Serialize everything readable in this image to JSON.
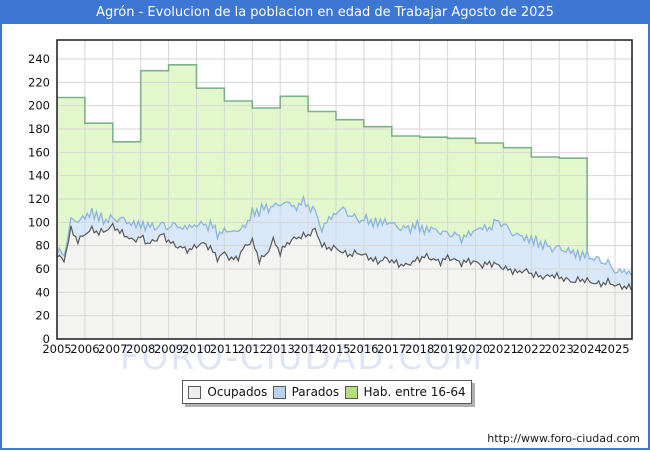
{
  "header": {
    "title": "Agrón - Evolucion de la poblacion en edad de Trabajar Agosto de 2025"
  },
  "footer": {
    "watermark": "FORO-CIUDAD.COM",
    "url": "http://www.foro-ciudad.com"
  },
  "colors": {
    "titlebar": "#3d76d3",
    "frame_border": "#3d76d3",
    "grid": "#d6d6d6",
    "plot_border": "#1a1a1a",
    "ocupados_fill": "#f3f3f1",
    "ocupados_line": "#58595b",
    "parados_fill": "#d8e8f8",
    "parados_line": "#8cb4e0",
    "hab_fill": "#e3f7cc",
    "hab_line": "#7fb08d",
    "watermark": "#e0e5f4",
    "tick_text": "#111111"
  },
  "chart_data": {
    "type": "area",
    "title": "Agrón - Evolucion de la poblacion en edad de Trabajar Agosto de 2025",
    "xlabel": "",
    "ylabel": "",
    "grid": true,
    "legend_position": "bottom",
    "xlim": [
      2005,
      2025.61
    ],
    "ylim": [
      0,
      256.3
    ],
    "x_ticks": [
      2005,
      2006,
      2007,
      2008,
      2009,
      2010,
      2011,
      2012,
      2013,
      2014,
      2015,
      2016,
      2017,
      2018,
      2019,
      2020,
      2021,
      2022,
      2023,
      2024,
      2025
    ],
    "y_ticks": [
      0,
      20,
      40,
      60,
      80,
      100,
      120,
      140,
      160,
      180,
      200,
      220,
      240
    ],
    "legend": [
      {
        "label": "Ocupados",
        "swatch": "#ededed"
      },
      {
        "label": "Parados",
        "swatch": "#b9d2ed"
      },
      {
        "label": "Hab. entre 16-64",
        "swatch": "#b4dd7f"
      }
    ],
    "series": [
      {
        "name": "Ocupados",
        "role": "base",
        "x_start": 2005,
        "x_step": 0.25,
        "x_end": 2025.58,
        "values": [
          72,
          67,
          94,
          84,
          90,
          94,
          91,
          93,
          97,
          92,
          88,
          84,
          88,
          82,
          84,
          90,
          84,
          80,
          78,
          76,
          80,
          82,
          78,
          69,
          74,
          68,
          70,
          80,
          84,
          68,
          72,
          85,
          74,
          82,
          86,
          88,
          89,
          94,
          80,
          78,
          78,
          74,
          72,
          74,
          72,
          69,
          66,
          69,
          67,
          64,
          63,
          66,
          69,
          71,
          68,
          66,
          70,
          68,
          65,
          67,
          66,
          63,
          65,
          64,
          61,
          59,
          57,
          59,
          56,
          54,
          53,
          55,
          53,
          51,
          49,
          51,
          50,
          48,
          47,
          49,
          46,
          45,
          44
        ]
      },
      {
        "name": "Parados",
        "role": "stacked_on_base",
        "x_start": 2005,
        "x_step": 0.25,
        "x_end": 2025.58,
        "values": [
          3,
          5,
          7,
          18,
          14,
          15,
          13,
          9,
          6,
          11,
          13,
          14,
          10,
          15,
          12,
          8,
          12,
          18,
          17,
          20,
          18,
          16,
          20,
          22,
          18,
          25,
          22,
          18,
          23,
          43,
          40,
          29,
          41,
          36,
          26,
          29,
          26,
          15,
          14,
          25,
          30,
          38,
          34,
          29,
          30,
          32,
          33,
          32,
          32,
          32,
          31,
          31,
          27,
          22,
          27,
          25,
          21,
          21,
          22,
          22,
          28,
          32,
          30,
          37,
          38,
          33,
          32,
          28,
          29,
          29,
          27,
          23,
          25,
          25,
          25,
          21,
          22,
          21,
          20,
          16,
          12,
          13,
          13
        ]
      },
      {
        "name": "Hab. entre 16-64",
        "role": "annual_step",
        "x_start": 2005,
        "x_step": 1,
        "x_end": 2024,
        "values": [
          207,
          185,
          169,
          230,
          235,
          215,
          204,
          198,
          208,
          195,
          188,
          182,
          174,
          173,
          172,
          168,
          164,
          156,
          155
        ]
      }
    ]
  }
}
